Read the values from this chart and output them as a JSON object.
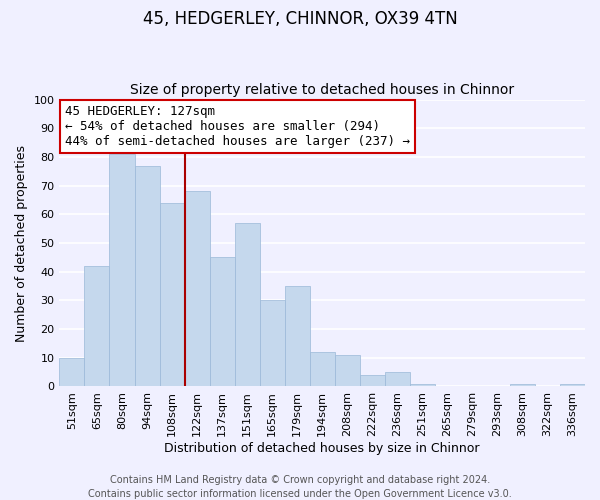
{
  "title": "45, HEDGERLEY, CHINNOR, OX39 4TN",
  "subtitle": "Size of property relative to detached houses in Chinnor",
  "xlabel": "Distribution of detached houses by size in Chinnor",
  "ylabel": "Number of detached properties",
  "footer_lines": [
    "Contains HM Land Registry data © Crown copyright and database right 2024.",
    "Contains public sector information licensed under the Open Government Licence v3.0."
  ],
  "bar_labels": [
    "51sqm",
    "65sqm",
    "80sqm",
    "94sqm",
    "108sqm",
    "122sqm",
    "137sqm",
    "151sqm",
    "165sqm",
    "179sqm",
    "194sqm",
    "208sqm",
    "222sqm",
    "236sqm",
    "251sqm",
    "265sqm",
    "279sqm",
    "293sqm",
    "308sqm",
    "322sqm",
    "336sqm"
  ],
  "bar_values": [
    10,
    42,
    81,
    77,
    64,
    68,
    45,
    57,
    30,
    35,
    12,
    11,
    4,
    5,
    1,
    0,
    0,
    0,
    1,
    0,
    1
  ],
  "bar_color": "#c5d8ed",
  "bar_edge_color": "#9ab8d8",
  "highlight_index": 5,
  "highlight_line_color": "#aa0000",
  "annotation_line1": "45 HEDGERLEY: 127sqm",
  "annotation_line2": "← 54% of detached houses are smaller (294)",
  "annotation_line3": "44% of semi-detached houses are larger (237) →",
  "annotation_box_edge_color": "#cc0000",
  "annotation_box_facecolor": "#ffffff",
  "ylim": [
    0,
    100
  ],
  "yticks": [
    0,
    10,
    20,
    30,
    40,
    50,
    60,
    70,
    80,
    90,
    100
  ],
  "background_color": "#f0f0ff",
  "grid_color": "#ffffff",
  "title_fontsize": 12,
  "subtitle_fontsize": 10,
  "axis_label_fontsize": 9,
  "tick_fontsize": 8,
  "annotation_fontsize": 9,
  "footer_fontsize": 7
}
